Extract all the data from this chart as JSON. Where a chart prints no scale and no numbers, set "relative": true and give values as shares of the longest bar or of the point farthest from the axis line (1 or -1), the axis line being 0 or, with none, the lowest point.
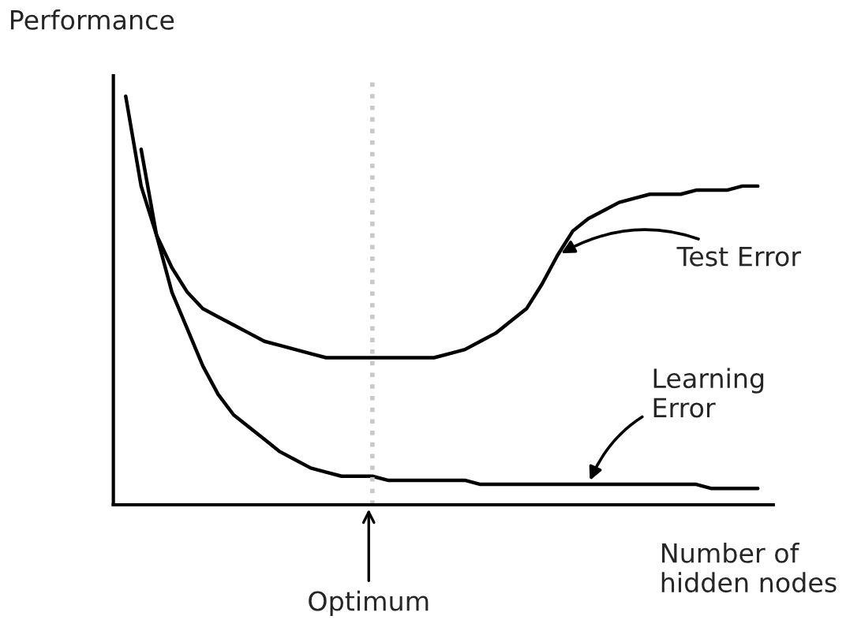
{
  "chart_data": {
    "type": "line",
    "relative": true,
    "ylabel": "Performance",
    "xlabel": "Number of\nhidden nodes",
    "categories": [
      null,
      null,
      null,
      null,
      null,
      null,
      null,
      null,
      null,
      null,
      null,
      null,
      null,
      null,
      null,
      null,
      null,
      null,
      null,
      null,
      null,
      null,
      null,
      null,
      null,
      null,
      null,
      null,
      null,
      null,
      null,
      null,
      null,
      null,
      null,
      null,
      null,
      null,
      null,
      null,
      null,
      null
    ],
    "series": [
      {
        "color": "#000000",
        "values": [
          1.0,
          0.78,
          0.66,
          0.58,
          0.52,
          0.48,
          0.46,
          0.44,
          0.42,
          0.4,
          0.39,
          0.38,
          0.37,
          0.36,
          0.36,
          0.36,
          0.36,
          0.36,
          0.36,
          0.36,
          0.36,
          0.37,
          0.38,
          0.4,
          0.42,
          0.45,
          0.48,
          0.54,
          0.61,
          0.67,
          0.7,
          0.72,
          0.74,
          0.75,
          0.76,
          0.76,
          0.76,
          0.77,
          0.77,
          0.77,
          0.78,
          0.78
        ]
      },
      {
        "color": "#000000",
        "values": [
          null,
          0.87,
          0.66,
          0.52,
          0.43,
          0.34,
          0.27,
          0.22,
          0.19,
          0.16,
          0.13,
          0.11,
          0.09,
          0.08,
          0.07,
          0.07,
          0.07,
          0.06,
          0.06,
          0.06,
          0.06,
          0.06,
          0.06,
          0.05,
          0.05,
          0.05,
          0.05,
          0.05,
          0.05,
          0.05,
          0.05,
          0.05,
          0.05,
          0.05,
          0.05,
          0.05,
          0.05,
          0.05,
          0.04,
          0.04,
          0.04,
          0.04
        ]
      }
    ],
    "annotations": [
      "Test Error",
      "Learning\nError",
      "Optimum"
    ]
  }
}
